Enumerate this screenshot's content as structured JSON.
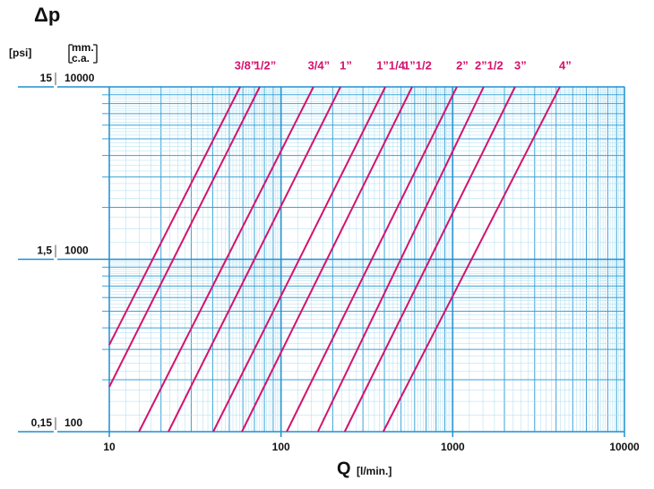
{
  "chart_data": {
    "type": "line",
    "title": "Δp",
    "y_unit_left": "[psi]",
    "y_unit_right_1": "mm.",
    "y_unit_right_2": "c.a.",
    "x_label": "Q",
    "x_unit": "[l/min.]",
    "log_x": true,
    "log_y": true,
    "grid": true,
    "xlim": [
      10,
      10000
    ],
    "xticks": [
      10,
      100,
      1000,
      10000
    ],
    "ylim": [
      100,
      10000
    ],
    "yticks": [
      100,
      1000,
      10000
    ],
    "y2lim": [
      0.15,
      15
    ],
    "y2ticks": [
      {
        "value": 0.15,
        "label": "0,15"
      },
      {
        "value": 1.5,
        "label": "1,5"
      },
      15
    ],
    "series": [
      {
        "name": "3/8”",
        "color": "#d4136e",
        "x": [
          10,
          57.8
        ],
        "values": [
          319,
          10000
        ]
      },
      {
        "name": "1/2”",
        "color": "#d4136e",
        "x": [
          10,
          75.2
        ],
        "values": [
          182,
          10000
        ]
      },
      {
        "name": "3/4”",
        "color": "#d4136e",
        "x": [
          14.9,
          154.5
        ],
        "values": [
          100,
          10000
        ]
      },
      {
        "name": "1”",
        "color": "#d4136e",
        "x": [
          22.1,
          222
        ],
        "values": [
          100,
          10000
        ]
      },
      {
        "name": "1”1/4",
        "color": "#d4136e",
        "x": [
          40.3,
          405
        ],
        "values": [
          100,
          10000
        ]
      },
      {
        "name": "1”1/2",
        "color": "#d4136e",
        "x": [
          59.2,
          580
        ],
        "values": [
          100,
          10000
        ]
      },
      {
        "name": "2”",
        "color": "#d4136e",
        "x": [
          108,
          1057
        ],
        "values": [
          100,
          10000
        ]
      },
      {
        "name": "2”1/2",
        "color": "#d4136e",
        "x": [
          164,
          1514
        ],
        "values": [
          100,
          10000
        ]
      },
      {
        "name": "3”",
        "color": "#d4136e",
        "x": [
          235,
          2306
        ],
        "values": [
          100,
          10000
        ]
      },
      {
        "name": "4”",
        "color": "#d4136e",
        "x": [
          394,
          4205
        ],
        "values": [
          100,
          10000
        ]
      }
    ]
  }
}
